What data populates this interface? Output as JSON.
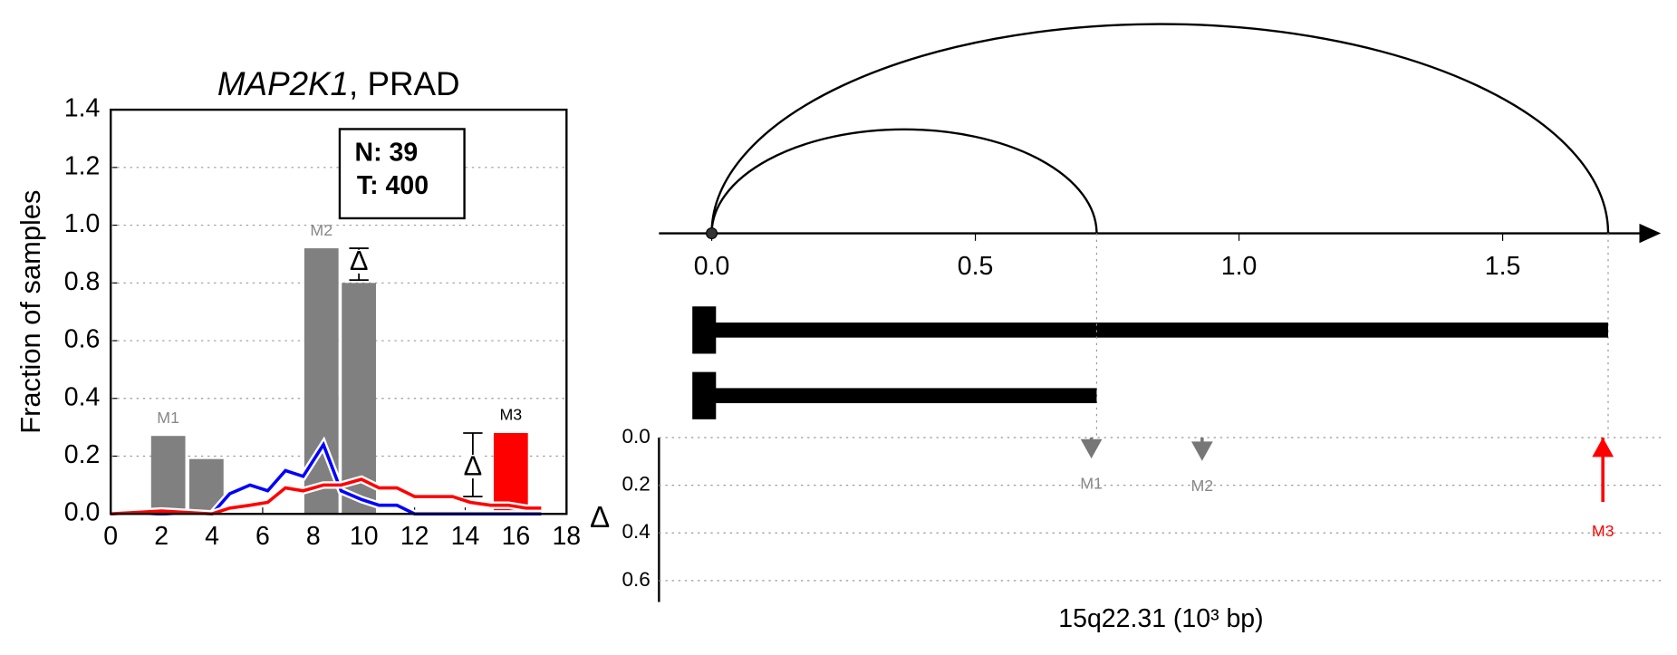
{
  "chart_data": [
    {
      "type": "bar",
      "title": [
        "MAP2K1",
        ", PRAD"
      ],
      "ylabel": "Fraction of samples",
      "xlim": [
        0,
        18
      ],
      "xticks": [
        0,
        2,
        4,
        6,
        8,
        10,
        12,
        14,
        16,
        18
      ],
      "ylim": [
        0,
        1.4
      ],
      "yticks": [
        {
          "value": 0,
          "label": "0.0"
        },
        0.2,
        0.4,
        0.6,
        0.8,
        {
          "value": 1,
          "label": "1.0"
        },
        1.2,
        1.4
      ],
      "grid": true,
      "bars": {
        "x": [
          2.27,
          3.78,
          8.32,
          9.8,
          15.8
        ],
        "values": [
          0.27,
          0.19,
          0.92,
          0.8,
          0.28
        ],
        "colors": [
          "#808080",
          "#808080",
          "#808080",
          "#808080",
          "#ff0000"
        ]
      },
      "bar_labels": [
        {
          "text": "M1",
          "bar": 0,
          "color": "#888888"
        },
        {
          "text": "M2",
          "bar": 2,
          "color": "#888888"
        },
        {
          "text": "M3",
          "bar": 4,
          "color": "#000000"
        }
      ],
      "line_x": [
        0,
        1,
        2,
        3,
        4,
        4.7,
        5.5,
        6.2,
        6.9,
        7.6,
        8.4,
        9.1,
        9.9,
        10.6,
        11.3,
        12,
        12.8,
        13.5,
        14.2,
        15,
        15.7,
        16.4,
        17
      ],
      "series": [
        {
          "color": "#0000ff",
          "values": [
            0,
            0,
            0,
            0,
            0,
            0.07,
            0.1,
            0.08,
            0.15,
            0.13,
            0.24,
            0.08,
            0.05,
            0.03,
            0.03,
            0,
            0,
            0,
            0,
            0,
            0,
            0,
            0
          ]
        },
        {
          "color": "#ff0000",
          "values": [
            0,
            0.005,
            0.01,
            0.005,
            0,
            0.02,
            0.03,
            0.04,
            0.09,
            0.08,
            0.1,
            0.1,
            0.12,
            0.09,
            0.09,
            0.06,
            0.06,
            0.06,
            0.04,
            0.03,
            0.03,
            0.02,
            0.02
          ]
        }
      ],
      "delta_symbol": "Δ",
      "deltas": [
        {
          "x": 9.8,
          "value": 0.87,
          "low": 0.81,
          "high": 0.92
        },
        {
          "x": 14.3,
          "value": 0.16,
          "low": 0.06,
          "high": 0.28
        }
      ],
      "annotation_lines": [
        "N: 39",
        "T: 400"
      ]
    },
    {
      "type": "arc",
      "xlabel": "15q22.31 (10³ bp)",
      "ylabel": "Δ",
      "xlim": [
        -0.1,
        1.8
      ],
      "xticks": [
        {
          "value": 0,
          "label": "0.0"
        },
        0.5,
        {
          "value": 1,
          "label": "1.0"
        },
        1.5
      ],
      "origin": 0,
      "ends": [
        1.7,
        0.73
      ],
      "ylim": [
        0,
        0.69
      ],
      "yticks": [
        {
          "value": 0,
          "label": "0.0"
        },
        0.2,
        0.4,
        0.6
      ],
      "mutations": [
        {
          "name": "M1",
          "x": 0.72,
          "value": 0.07,
          "color": "#777777",
          "direction": "down"
        },
        {
          "name": "M2",
          "x": 0.93,
          "value": 0.08,
          "color": "#777777",
          "direction": "down"
        },
        {
          "name": "M3",
          "x": 1.69,
          "value": 0.27,
          "color": "#ff0000",
          "direction": "up"
        }
      ]
    }
  ]
}
